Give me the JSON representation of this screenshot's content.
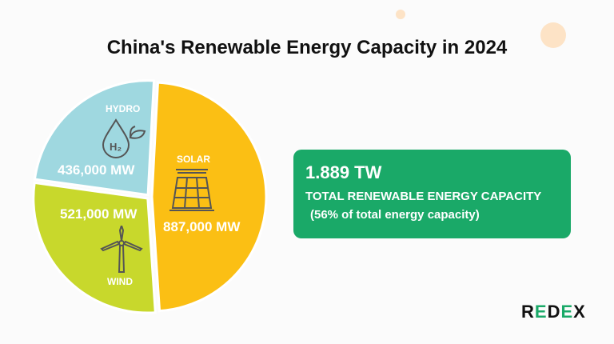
{
  "title": "China's Renewable Energy Capacity in 2024",
  "chart_data": {
    "type": "pie",
    "title": "China's Renewable Energy Capacity in 2024",
    "unit": "MW",
    "slices": [
      {
        "name": "SOLAR",
        "value": 887000,
        "label": "887,000 MW",
        "color": "#fbbf14",
        "icon": "solar-panel-icon"
      },
      {
        "name": "WIND",
        "value": 521000,
        "label": "521,000 MW",
        "color": "#c8d82c",
        "icon": "wind-turbine-icon"
      },
      {
        "name": "HYDRO",
        "value": 436000,
        "label": "436,000 MW",
        "color": "#9fd8e0",
        "icon": "water-drop-h2-icon"
      }
    ]
  },
  "card": {
    "total": "1.889 TW",
    "label": "TOTAL RENEWABLE ENERGY CAPACITY",
    "note": "(56% of total energy capacity)",
    "color": "#1aa968"
  },
  "logo": {
    "text": "REDEX",
    "color": "#1aa968"
  }
}
